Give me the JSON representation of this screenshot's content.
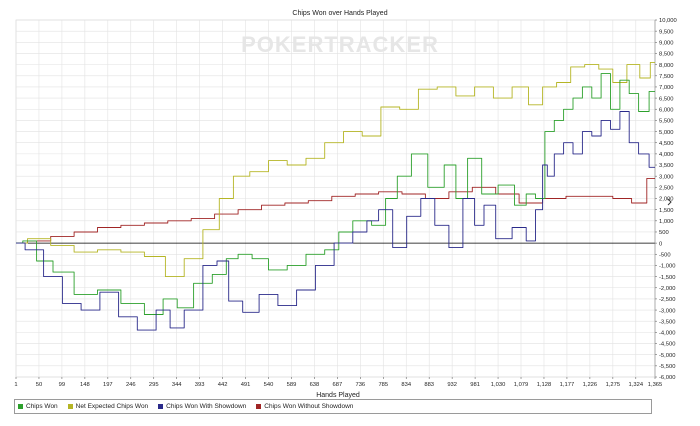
{
  "watermark": "POKERTRACKER",
  "colors": {
    "chips_won": "#2ca02c",
    "net_expected": "#b5b525",
    "with_showdown": "#2a2a8a",
    "without_showdown": "#a02525",
    "gridline": "#e2e2e2",
    "axis": "#000000",
    "watermark": "#e8e8e8"
  },
  "chart_data": {
    "type": "line",
    "title": "Chips Won over Hands Played",
    "xlabel": "Hands Played",
    "ylabel": "",
    "xlim": [
      1,
      1365
    ],
    "ylim": [
      -6000,
      10000
    ],
    "x_ticks": [
      "1",
      "50",
      "99",
      "148",
      "197",
      "246",
      "295",
      "344",
      "393",
      "442",
      "491",
      "540",
      "589",
      "638",
      "687",
      "736",
      "785",
      "834",
      "883",
      "932",
      "981",
      "1,030",
      "1,079",
      "1,128",
      "1,177",
      "1,226",
      "1,275",
      "1,324",
      "1,365"
    ],
    "y_ticks": [
      "10,000",
      "9,500",
      "9,000",
      "8,500",
      "8,000",
      "7,500",
      "7,000",
      "6,500",
      "6,000",
      "5,500",
      "5,000",
      "4,500",
      "4,000",
      "3,500",
      "3,000",
      "2,500",
      "2,000",
      "1,500",
      "1,000",
      "500",
      "0",
      "-500",
      "-1,000",
      "-1,500",
      "-2,000",
      "-2,500",
      "-3,000",
      "-3,500",
      "-4,000",
      "-4,500",
      "-5,000",
      "-5,500",
      "-6,000"
    ],
    "grid": true,
    "legend_position": "bottom",
    "series": [
      {
        "name": "Chips Won",
        "color": "#2ca02c",
        "x": [
          1,
          30,
          60,
          100,
          150,
          200,
          250,
          300,
          330,
          360,
          400,
          440,
          460,
          490,
          520,
          560,
          600,
          640,
          680,
          700,
          740,
          780,
          800,
          830,
          860,
          900,
          930,
          950,
          980,
          1010,
          1050,
          1080,
          1100,
          1120,
          1140,
          1160,
          1180,
          1200,
          1220,
          1240,
          1260,
          1280,
          1300,
          1320,
          1340,
          1365
        ],
        "y": [
          0,
          100,
          -800,
          -1300,
          -2300,
          -2100,
          -2700,
          -3200,
          -2500,
          -2900,
          -1800,
          -1400,
          -700,
          -500,
          -700,
          -1200,
          -1000,
          -500,
          -300,
          500,
          1000,
          800,
          2000,
          3000,
          4000,
          2500,
          3500,
          2000,
          3800,
          2200,
          2600,
          1700,
          2200,
          2000,
          5000,
          5500,
          6000,
          6500,
          7000,
          6500,
          7600,
          6000,
          7300,
          6700,
          5900,
          6800
        ]
      },
      {
        "name": "Net Expected Chips Won",
        "color": "#b5b525",
        "x": [
          1,
          50,
          100,
          150,
          200,
          250,
          300,
          340,
          380,
          420,
          450,
          480,
          520,
          560,
          600,
          640,
          680,
          720,
          760,
          800,
          840,
          880,
          920,
          960,
          1000,
          1040,
          1080,
          1110,
          1140,
          1170,
          1200,
          1230,
          1260,
          1290,
          1320,
          1345,
          1365
        ],
        "y": [
          0,
          200,
          -100,
          -400,
          -300,
          -400,
          -600,
          -1500,
          -700,
          600,
          2000,
          3000,
          3200,
          3700,
          3500,
          3800,
          4500,
          5000,
          4800,
          6100,
          6000,
          6900,
          7000,
          6600,
          7000,
          6500,
          7000,
          6200,
          7000,
          7200,
          7900,
          8000,
          7800,
          7200,
          8000,
          7400,
          8100
        ]
      },
      {
        "name": "Chips Won With Showdown",
        "color": "#2a2a8a",
        "x": [
          1,
          40,
          80,
          120,
          160,
          200,
          240,
          280,
          320,
          340,
          380,
          420,
          440,
          470,
          500,
          540,
          580,
          620,
          660,
          700,
          740,
          760,
          790,
          820,
          850,
          880,
          910,
          940,
          970,
          990,
          1010,
          1040,
          1080,
          1100,
          1120,
          1130,
          1140,
          1160,
          1180,
          1200,
          1220,
          1240,
          1260,
          1280,
          1300,
          1320,
          1340,
          1365
        ],
        "y": [
          0,
          -300,
          -1500,
          -2700,
          -3000,
          -2200,
          -3300,
          -3900,
          -3000,
          -3800,
          -3000,
          -1000,
          -800,
          -2600,
          -3100,
          -2300,
          -2800,
          -2100,
          -1000,
          0,
          500,
          1000,
          1500,
          -200,
          1200,
          2000,
          800,
          -200,
          2000,
          800,
          1700,
          200,
          700,
          100,
          1500,
          3500,
          3000,
          4000,
          4500,
          4000,
          5000,
          4800,
          5500,
          5100,
          5900,
          4500,
          4000,
          3400
        ]
      },
      {
        "name": "Chips Won Without Showdown",
        "color": "#a02525",
        "x": [
          1,
          50,
          100,
          150,
          200,
          250,
          300,
          350,
          400,
          450,
          500,
          550,
          600,
          650,
          700,
          750,
          800,
          850,
          900,
          950,
          1000,
          1050,
          1100,
          1150,
          1200,
          1250,
          1300,
          1330,
          1365
        ],
        "y": [
          0,
          100,
          300,
          500,
          700,
          800,
          900,
          1000,
          1100,
          1300,
          1500,
          1700,
          1800,
          1900,
          2100,
          2200,
          2300,
          2200,
          2000,
          2300,
          2500,
          2200,
          1800,
          2000,
          2100,
          2100,
          2000,
          1800,
          2900
        ]
      }
    ]
  }
}
